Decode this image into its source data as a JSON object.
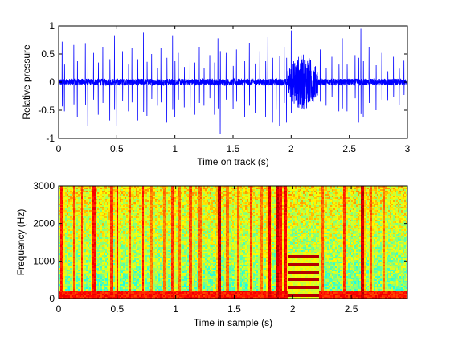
{
  "chart_data": [
    {
      "type": "line",
      "xlabel": "Time on track (s)",
      "ylabel": "Relative pressure",
      "xlim": [
        0,
        3
      ],
      "ylim": [
        -1,
        1
      ],
      "xticks": [
        0,
        0.5,
        1,
        1.5,
        2,
        2.5,
        3
      ],
      "xtick_labels": [
        "0",
        "0.5",
        "1",
        "1.5",
        "2",
        "2.5",
        "3"
      ],
      "yticks": [
        -1,
        -0.5,
        0,
        0.5,
        1
      ],
      "ytick_labels": [
        "-1",
        "-0.5",
        "0",
        "0.5",
        "1"
      ],
      "grid": false,
      "line_color": "#0000ff",
      "series": [
        {
          "noise_floor": 0.06,
          "burst": {
            "x_start": 1.97,
            "x_end": 2.23,
            "amplitude": 0.5
          },
          "spikes": [
            [
              0.03,
              0.72
            ],
            [
              0.05,
              -0.52
            ],
            [
              0.13,
              0.66
            ],
            [
              0.16,
              -0.62
            ],
            [
              0.23,
              0.68
            ],
            [
              0.25,
              -0.78
            ],
            [
              0.3,
              0.52
            ],
            [
              0.34,
              -0.58
            ],
            [
              0.38,
              0.62
            ],
            [
              0.44,
              -0.68
            ],
            [
              0.48,
              0.82
            ],
            [
              0.5,
              -0.78
            ],
            [
              0.55,
              0.55
            ],
            [
              0.6,
              -0.52
            ],
            [
              0.63,
              0.6
            ],
            [
              0.68,
              -0.68
            ],
            [
              0.73,
              0.88
            ],
            [
              0.76,
              -0.6
            ],
            [
              0.8,
              0.5
            ],
            [
              0.85,
              -0.42
            ],
            [
              0.88,
              0.6
            ],
            [
              0.93,
              -0.72
            ],
            [
              0.98,
              0.82
            ],
            [
              1.0,
              -0.62
            ],
            [
              1.03,
              0.52
            ],
            [
              1.08,
              -0.45
            ],
            [
              1.13,
              0.75
            ],
            [
              1.17,
              -0.58
            ],
            [
              1.21,
              0.62
            ],
            [
              1.25,
              -0.42
            ],
            [
              1.3,
              0.48
            ],
            [
              1.34,
              -0.58
            ],
            [
              1.37,
              0.78
            ],
            [
              1.39,
              -0.92
            ],
            [
              1.44,
              0.52
            ],
            [
              1.5,
              -0.48
            ],
            [
              1.53,
              0.58
            ],
            [
              1.6,
              -0.62
            ],
            [
              1.64,
              0.7
            ],
            [
              1.69,
              -0.55
            ],
            [
              1.73,
              0.55
            ],
            [
              1.78,
              -0.62
            ],
            [
              1.8,
              0.8
            ],
            [
              1.84,
              -0.72
            ],
            [
              1.87,
              0.82
            ],
            [
              1.9,
              -0.78
            ],
            [
              1.94,
              0.62
            ],
            [
              1.96,
              -0.72
            ],
            [
              2.0,
              0.92
            ],
            [
              2.25,
              0.58
            ],
            [
              2.3,
              -0.42
            ],
            [
              2.35,
              0.45
            ],
            [
              2.41,
              -0.52
            ],
            [
              2.44,
              0.78
            ],
            [
              2.48,
              -0.52
            ],
            [
              2.55,
              0.48
            ],
            [
              2.58,
              -0.72
            ],
            [
              2.6,
              0.95
            ],
            [
              2.62,
              -0.62
            ],
            [
              2.67,
              0.62
            ],
            [
              2.73,
              -0.5
            ],
            [
              2.78,
              0.52
            ],
            [
              2.83,
              -0.32
            ],
            [
              2.88,
              0.45
            ],
            [
              2.93,
              -0.4
            ],
            [
              2.97,
              0.38
            ]
          ]
        }
      ]
    },
    {
      "type": "heatmap",
      "xlabel": "Time in sample (s)",
      "ylabel": "Frequency (Hz)",
      "xlim": [
        0,
        2.98
      ],
      "ylim": [
        0,
        3000
      ],
      "xticks": [
        0,
        0.5,
        1,
        1.5,
        2,
        2.5
      ],
      "xtick_labels": [
        "0",
        "0.5",
        "1",
        "1.5",
        "2",
        "2.5"
      ],
      "yticks": [
        0,
        1000,
        2000,
        3000
      ],
      "ytick_labels": [
        "0",
        "1000",
        "2000",
        "3000"
      ],
      "grid": false,
      "colormap": "jet",
      "low_frequency_band": {
        "y_top": 200,
        "level": 0.85
      },
      "click_columns": [
        [
          0.03,
          0.85
        ],
        [
          0.13,
          0.8
        ],
        [
          0.2,
          0.82
        ],
        [
          0.3,
          0.86
        ],
        [
          0.45,
          0.82
        ],
        [
          0.5,
          0.85
        ],
        [
          0.61,
          0.78
        ],
        [
          0.72,
          0.84
        ],
        [
          0.8,
          0.75
        ],
        [
          0.91,
          0.75
        ],
        [
          0.98,
          0.82
        ],
        [
          1.03,
          0.76
        ],
        [
          1.13,
          0.8
        ],
        [
          1.21,
          0.76
        ],
        [
          1.37,
          0.94
        ],
        [
          1.44,
          0.76
        ],
        [
          1.53,
          0.78
        ],
        [
          1.64,
          0.8
        ],
        [
          1.73,
          0.76
        ],
        [
          1.8,
          0.9
        ],
        [
          1.87,
          0.92
        ],
        [
          1.9,
          0.86
        ],
        [
          1.94,
          0.88
        ],
        [
          2.25,
          0.78
        ],
        [
          2.44,
          0.82
        ],
        [
          2.6,
          0.92
        ],
        [
          2.67,
          0.78
        ],
        [
          2.78,
          0.75
        ]
      ],
      "burst": {
        "x_start": 1.97,
        "x_end": 2.23,
        "harmonics_hz": [
          100,
          300,
          500,
          700,
          900,
          1100
        ],
        "background_top_hz": 1200
      }
    }
  ]
}
